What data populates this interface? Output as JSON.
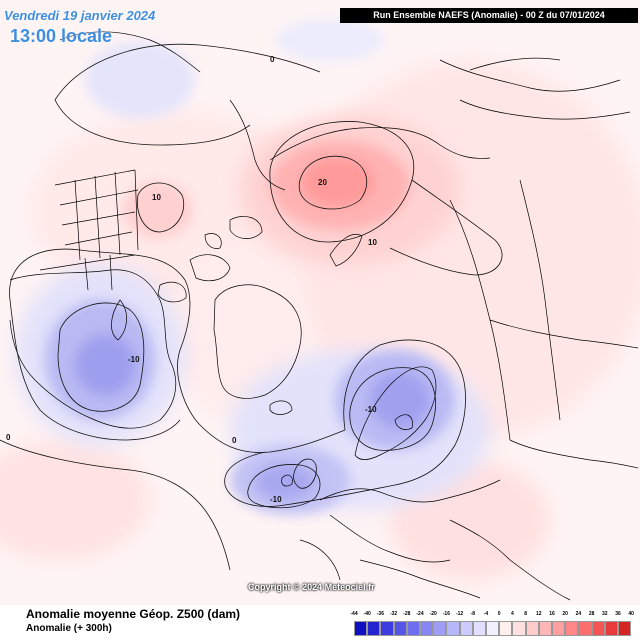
{
  "header": {
    "date": "Vendredi 19 janvier 2024",
    "time": "13:00 locale",
    "run": "Run Ensemble NAEFS  (Anomalie)  -  00 Z du 07/01/2024"
  },
  "map": {
    "contour_labels": [
      "0",
      "0",
      "0",
      "10",
      "20",
      "10",
      "-10",
      "-10",
      "-10"
    ]
  },
  "footer": {
    "copyright": "Copyright © 2024 Meteociel.fr",
    "title": "Anomalie moyenne Géop. Z500 (dam)",
    "subtitle": "Anomalie (+ 300h)"
  },
  "legend": {
    "ticks": [
      "-44",
      "-40",
      "-36",
      "-32",
      "-28",
      "-24",
      "-20",
      "-16",
      "-12",
      "-8",
      "-4",
      "0",
      "4",
      "8",
      "12",
      "16",
      "20",
      "24",
      "28",
      "32",
      "36",
      "40"
    ],
    "colors": [
      "#1010c0",
      "#2424d0",
      "#3c3ce0",
      "#5555e8",
      "#6e6ef0",
      "#8686f4",
      "#9e9ef7",
      "#b6b6fa",
      "#ccccfc",
      "#e0e0fe",
      "#f0f0ff",
      "#fff0f0",
      "#ffe0e0",
      "#ffcccc",
      "#ffb6b6",
      "#ff9e9e",
      "#ff8686",
      "#ff6e6e",
      "#f55555",
      "#e83c3c",
      "#d42424"
    ]
  }
}
